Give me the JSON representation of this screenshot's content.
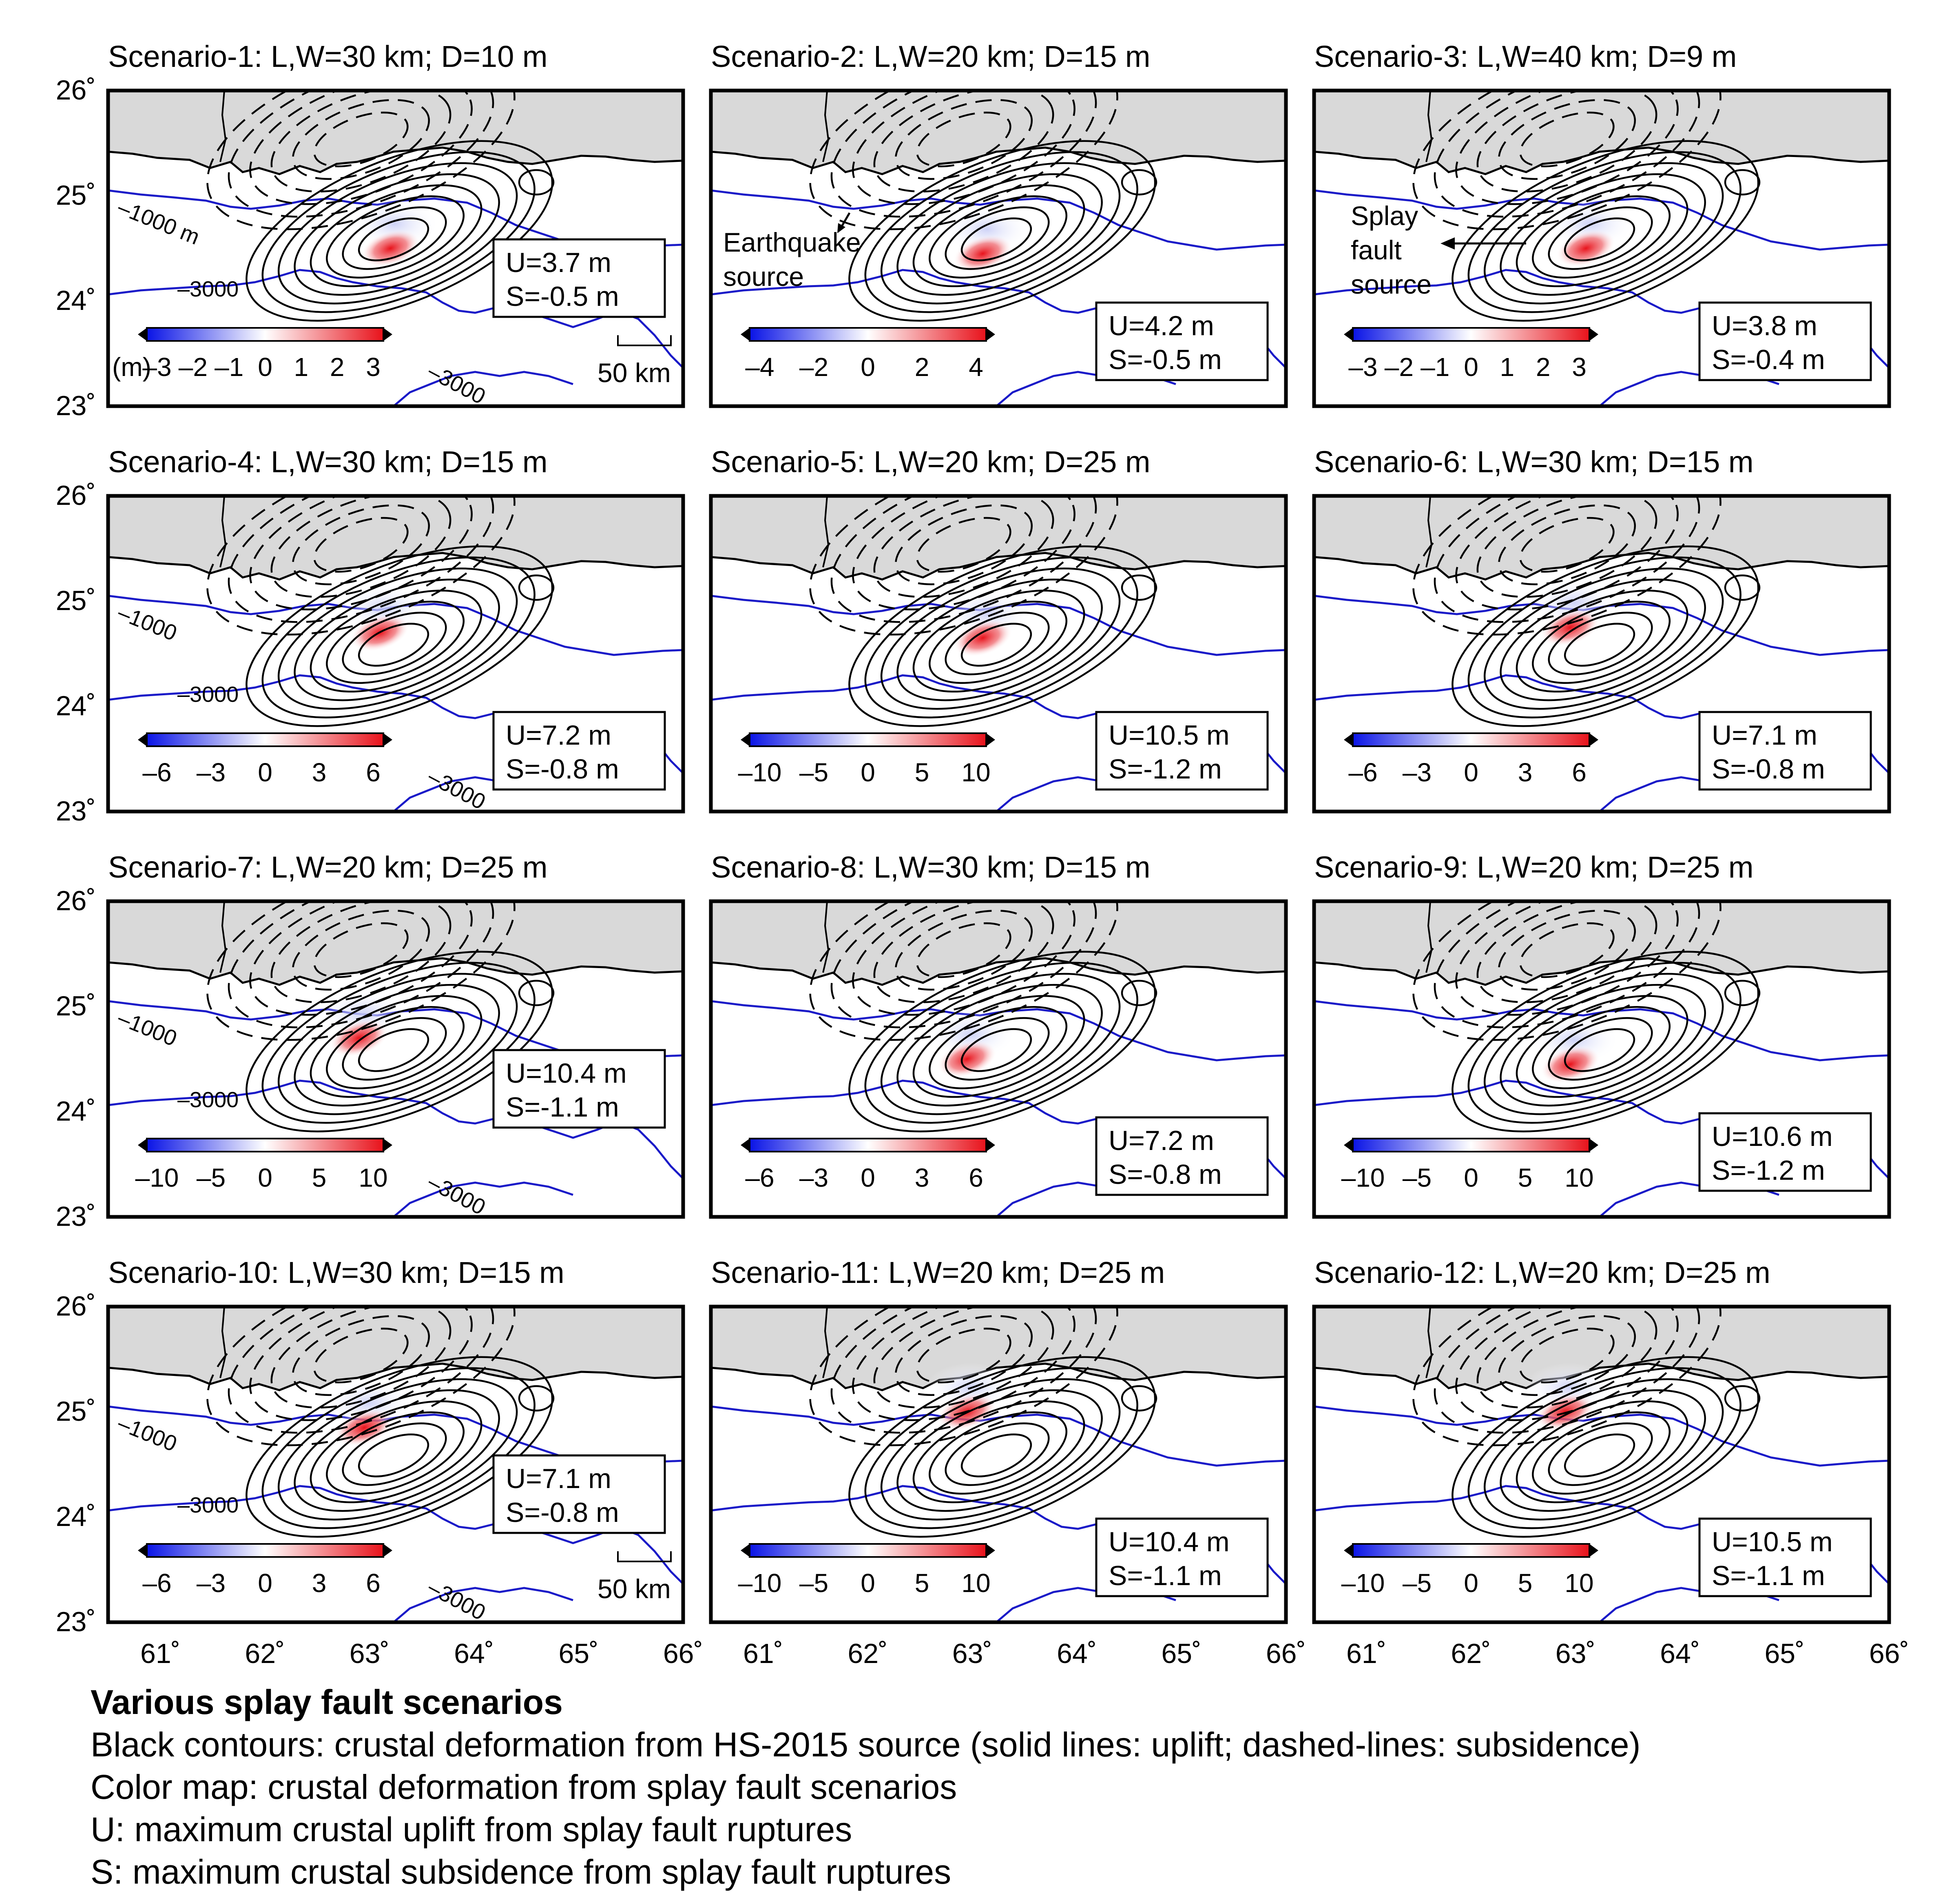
{
  "lat_labels": [
    "26˚",
    "25˚",
    "24˚",
    "23˚"
  ],
  "lon_labels": [
    "61˚",
    "62˚",
    "63˚",
    "64˚",
    "65˚",
    "66˚"
  ],
  "scenarios": [
    {
      "title": "Scenario-1: L,W=30 km; D=10 m",
      "U": "U=3.7 m",
      "S": "S=-0.5 m",
      "ticks": [
        "–3",
        "–2",
        "–1",
        "0",
        "1",
        "2",
        "3"
      ],
      "unit": "(m)",
      "uplift_lon": 63.2,
      "uplift_lat": 24.5,
      "annot": [
        "–1000 m",
        "–3000",
        "–3000"
      ],
      "scalebar": "50 km"
    },
    {
      "title": "Scenario-2: L,W=20 km; D=15 m",
      "U": "U=4.2 m",
      "S": "S=-0.5 m",
      "ticks": [
        "–4",
        "–2",
        "0",
        "2",
        "4"
      ],
      "source_label": [
        "Earthquake",
        "source"
      ],
      "uplift_lon": 63.1,
      "uplift_lat": 24.45
    },
    {
      "title": "Scenario-3: L,W=40 km; D=9 m",
      "U": "U=3.8 m",
      "S": "S=-0.4 m",
      "ticks": [
        "–3",
        "–2",
        "–1",
        "0",
        "1",
        "2",
        "3"
      ],
      "source_label": [
        "Splay",
        "fault",
        "source"
      ],
      "uplift_lon": 63.1,
      "uplift_lat": 24.5
    },
    {
      "title": "Scenario-4: L,W=30 km; D=15 m",
      "U": "U=7.2  m",
      "S": "S=-0.8 m",
      "ticks": [
        "–6",
        "–3",
        "0",
        "3",
        "6"
      ],
      "uplift_lon": 63.1,
      "uplift_lat": 24.7,
      "annot": [
        "–1000",
        "–3000",
        "–3000"
      ]
    },
    {
      "title": "Scenario-5: L,W=20 km; D=25 m",
      "U": "U=10.5 m",
      "S": "S=-1.2 m",
      "ticks": [
        "–10",
        "–5",
        "0",
        "5",
        "10"
      ],
      "uplift_lon": 63.1,
      "uplift_lat": 24.65
    },
    {
      "title": "Scenario-6: L,W=30 km; D=15 m",
      "U": "U=7.1 m",
      "S": "S=-0.8 m",
      "ticks": [
        "–6",
        "–3",
        "0",
        "3",
        "6"
      ],
      "uplift_lon": 62.95,
      "uplift_lat": 24.75
    },
    {
      "title": "Scenario-7: L,W=20 km; D=25 m",
      "U": "U=10.4 m",
      "S": "S=-1.1 m",
      "ticks": [
        "–10",
        "–5",
        "0",
        "5",
        "10"
      ],
      "uplift_lon": 62.9,
      "uplift_lat": 24.7,
      "annot": [
        "–1000",
        "–3000",
        "–3000"
      ]
    },
    {
      "title": "Scenario-8: L,W=30 km; D=15 m",
      "U": "U=7.2 m",
      "S": "S=-0.8 m",
      "ticks": [
        "–6",
        "–3",
        "0",
        "3",
        "6"
      ],
      "uplift_lon": 62.95,
      "uplift_lat": 24.5
    },
    {
      "title": "Scenario-9: L,W=20 km; D=25 m",
      "U": "U=10.6 m",
      "S": "S=-1.2 m",
      "ticks": [
        "–10",
        "–5",
        "0",
        "5",
        "10"
      ],
      "uplift_lon": 62.95,
      "uplift_lat": 24.45
    },
    {
      "title": "Scenario-10: L,W=30 km; D=15 m",
      "U": "U=7.1 m",
      "S": "S=-0.8 m",
      "ticks": [
        "–6",
        "–3",
        "0",
        "3",
        "6"
      ],
      "uplift_lon": 62.95,
      "uplift_lat": 24.85,
      "annot": [
        "–1000",
        "–3000",
        "–3000"
      ],
      "scalebar": "50 km"
    },
    {
      "title": "Scenario-11: L,W=20 km; D=25 m",
      "U": "U=10.4 m",
      "S": "S=-1.1 m",
      "ticks": [
        "–10",
        "–5",
        "0",
        "5",
        "10"
      ],
      "uplift_lon": 62.95,
      "uplift_lat": 25.0
    },
    {
      "title": "Scenario-12: L,W=20 km; D=25 m",
      "U": "U=10.5 m",
      "S": "S=-1.1 m",
      "ticks": [
        "–10",
        "–5",
        "0",
        "5",
        "10"
      ],
      "uplift_lon": 62.9,
      "uplift_lat": 25.0
    }
  ],
  "caption": {
    "title": "Various splay fault scenarios",
    "lines": [
      "Black contours: crustal deformation from HS-2015 source (solid lines: uplift; dashed-lines: subsidence)",
      "Color map: crustal deformation from splay fault scenarios",
      "U: maximum crustal uplift from splay fault ruptures",
      "S: maximum crustal subsidence from splay fault ruptures"
    ]
  },
  "colors": {
    "uplift": "#e8121b",
    "subsidence": "#1b1bd8",
    "bathymetry": "#1a1ac8",
    "land": "#d9d9d9"
  }
}
